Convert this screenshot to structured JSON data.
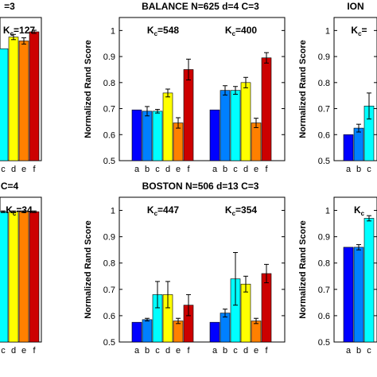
{
  "chart_data": [
    {
      "type": "bar",
      "title": "",
      "title_visible": "=3",
      "ylabel": "",
      "kc_labels": [
        "127"
      ],
      "categories": [
        "c",
        "d",
        "e",
        "f"
      ],
      "groups": [
        {
          "kc": "127",
          "values": [
            0.93,
            0.975,
            0.96,
            0.995
          ],
          "errors": [
            0,
            0.01,
            0.012,
            0.006
          ]
        }
      ],
      "ylim": [
        0.5,
        1.05
      ]
    },
    {
      "type": "bar",
      "title": "BALANCE N=625 d=4 C=3",
      "ylabel": "Normalized Rand Score",
      "yticks": [
        "0.5",
        "0.6",
        "0.7",
        "0.8",
        "0.9",
        "1"
      ],
      "categories": [
        "a",
        "b",
        "c",
        "d",
        "e",
        "f"
      ],
      "groups": [
        {
          "kc": "548",
          "values": [
            0.695,
            0.69,
            0.69,
            0.76,
            0.645,
            0.85
          ],
          "errors": [
            0,
            0.018,
            0.007,
            0.015,
            0.02,
            0.04
          ]
        },
        {
          "kc": "400",
          "values": [
            0.695,
            0.77,
            0.77,
            0.8,
            0.645,
            0.895
          ],
          "errors": [
            0,
            0.018,
            0.015,
            0.02,
            0.018,
            0.02
          ]
        }
      ],
      "ylim": [
        0.5,
        1.05
      ]
    },
    {
      "type": "bar",
      "title": "ION",
      "ylabel": "Normalized Rand Score",
      "yticks": [
        "0.5",
        "0.6",
        "0.7",
        "0.8",
        "0.9",
        "1"
      ],
      "categories": [
        "a",
        "b",
        "c"
      ],
      "groups": [
        {
          "kc": "",
          "values": [
            0.6,
            0.625,
            0.71
          ],
          "errors": [
            0,
            0.015,
            0.05
          ]
        }
      ],
      "ylim": [
        0.5,
        1.05
      ]
    },
    {
      "type": "bar",
      "title": "",
      "title_visible": "C=4",
      "ylabel": "",
      "categories": [
        "c",
        "d",
        "e",
        "f"
      ],
      "groups": [
        {
          "kc": "34",
          "values": [
            0.995,
            0.995,
            0.995,
            0.995
          ],
          "errors": [
            0.003,
            0.003,
            0.003,
            0.003
          ]
        }
      ],
      "ylim": [
        0.5,
        1.05
      ]
    },
    {
      "type": "bar",
      "title": "BOSTON N=506 d=13 C=3",
      "ylabel": "Normalized Rand Score",
      "yticks": [
        "0.5",
        "0.6",
        "0.7",
        "0.8",
        "0.9",
        "1"
      ],
      "categories": [
        "a",
        "b",
        "c",
        "d",
        "e",
        "f"
      ],
      "groups": [
        {
          "kc": "447",
          "values": [
            0.575,
            0.585,
            0.68,
            0.68,
            0.58,
            0.64
          ],
          "errors": [
            0,
            0.005,
            0.05,
            0.05,
            0.01,
            0.04
          ]
        },
        {
          "kc": "354",
          "values": [
            0.575,
            0.61,
            0.74,
            0.72,
            0.58,
            0.76
          ],
          "errors": [
            0,
            0.015,
            0.1,
            0.03,
            0.01,
            0.035
          ]
        }
      ],
      "ylim": [
        0.5,
        1.05
      ]
    },
    {
      "type": "bar",
      "title": "",
      "ylabel": "Normalized Rand Score",
      "yticks": [
        "0.5",
        "0.6",
        "0.7",
        "0.8",
        "0.9",
        "1"
      ],
      "categories": [
        "a",
        "b",
        "c"
      ],
      "groups": [
        {
          "kc": "",
          "kc_prefix_only": true,
          "values": [
            0.86,
            0.86,
            0.97
          ],
          "errors": [
            0,
            0.01,
            0.01
          ]
        }
      ],
      "ylim": [
        0.5,
        1.05
      ]
    }
  ],
  "colors": {
    "a": "#0000ff",
    "b": "#0080ff",
    "c": "#00ffff",
    "d": "#ffff00",
    "e": "#ff8000",
    "f": "#cc0000"
  },
  "kc_prefix": "K",
  "kc_sub": "c",
  "kc_eq": "="
}
